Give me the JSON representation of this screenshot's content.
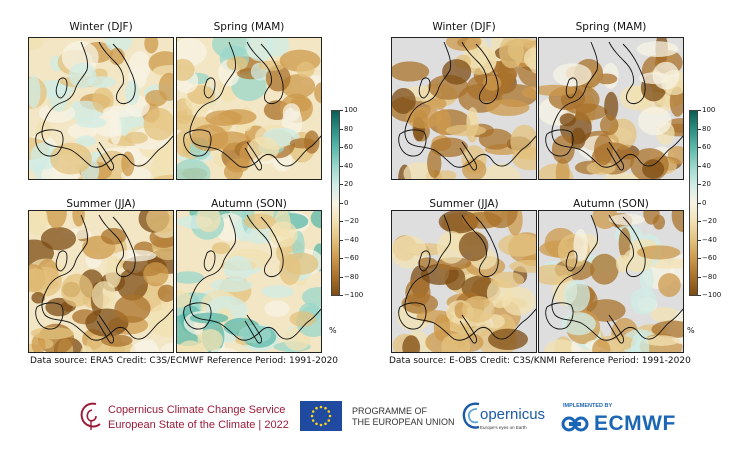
{
  "figure": {
    "season_titles": [
      "Winter (DJF)",
      "Spring (MAM)",
      "Summer (JJA)",
      "Autumn (SON)"
    ],
    "colorbar": {
      "ticks": [
        "100",
        "80",
        "60",
        "40",
        "20",
        "0",
        "−20",
        "−40",
        "−60",
        "−80",
        "−100"
      ],
      "unit": "%",
      "colors": [
        "#0b5e52",
        "#2b8f82",
        "#5bb9ab",
        "#9ad7cb",
        "#d0ece6",
        "#f7f3e4",
        "#f2e1b3",
        "#e3c27e",
        "#cd9a4c",
        "#a9712b",
        "#7d4c14"
      ]
    },
    "panels": [
      {
        "caption": "Data source: ERA5  Credit: C3S/ECMWF  Reference Period: 1991-2020"
      },
      {
        "caption": "Data source: E-OBS  Credit: C3S/KNMI  Reference Period: 1991-2020"
      }
    ]
  },
  "footer": {
    "c3s_line1": "Copernicus Climate Change Service",
    "c3s_line2": "European State of the Climate | 2022",
    "eu_line1": "PROGRAMME OF",
    "eu_line2": "THE EUROPEAN UNION",
    "copernicus": "opernicus",
    "copernicus_sub": "Europe's eyes on Earth",
    "implemented_by": "IMPLEMENTED BY",
    "ecmwf": "ECMWF"
  }
}
